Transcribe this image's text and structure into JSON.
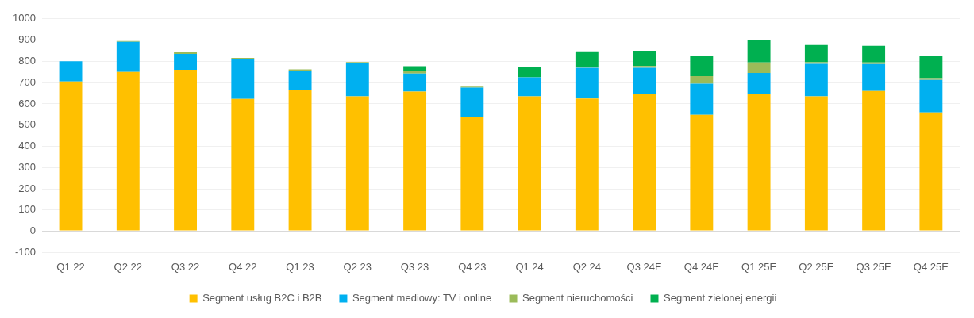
{
  "chart_data": {
    "type": "bar",
    "stacked": true,
    "categories": [
      "Q1 22",
      "Q2 22",
      "Q3 22",
      "Q4 22",
      "Q1 23",
      "Q2 23",
      "Q3 23",
      "Q4 23",
      "Q1 24",
      "Q2 24",
      "Q3 24E",
      "Q4 24E",
      "Q1 25E",
      "Q2 25E",
      "Q3 25E",
      "Q4 25E"
    ],
    "series": [
      {
        "name": "Segment usług B2C i B2B",
        "color": "#ffc000",
        "values": [
          705,
          750,
          760,
          623,
          665,
          635,
          658,
          537,
          635,
          625,
          648,
          548,
          648,
          635,
          660,
          560
        ]
      },
      {
        "name": "Segment mediowy: TV i online",
        "color": "#00b0f0",
        "values": [
          95,
          142,
          75,
          190,
          90,
          157,
          85,
          139,
          90,
          145,
          122,
          147,
          97,
          153,
          127,
          153
        ]
      },
      {
        "name": "Segment nieruchomości",
        "color": "#9bbb59",
        "values": [
          null,
          4,
          10,
          3,
          7,
          5,
          10,
          5,
          null,
          4,
          8,
          35,
          50,
          8,
          8,
          8
        ]
      },
      {
        "name": "Segment zielonej energii",
        "color": "#00b050",
        "values": [
          null,
          null,
          null,
          null,
          null,
          null,
          24,
          null,
          48,
          73,
          72,
          95,
          107,
          81,
          78,
          105
        ]
      }
    ],
    "ylim": [
      -100,
      1000
    ],
    "yticks": [
      -100,
      0,
      100,
      200,
      300,
      400,
      500,
      600,
      700,
      800,
      900,
      1000
    ],
    "grid": "y",
    "legend": "bottom"
  }
}
